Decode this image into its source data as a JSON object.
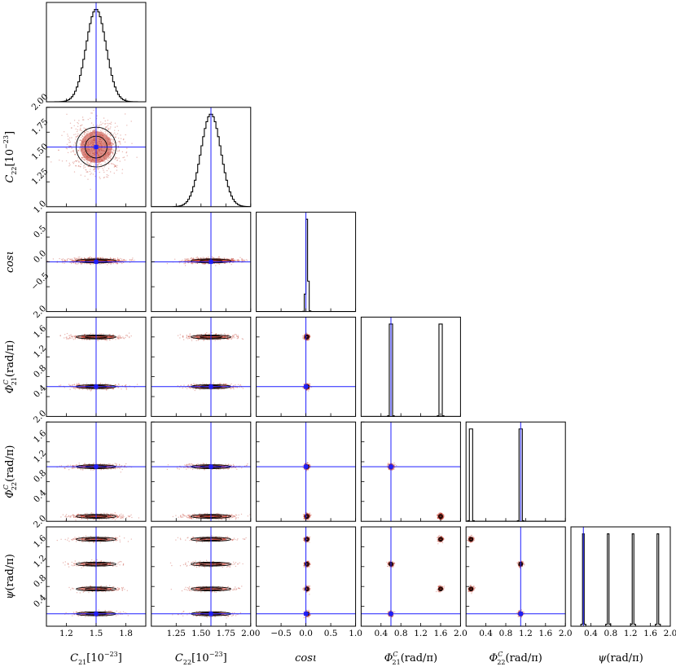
{
  "chart_data": {
    "type": "corner",
    "colors": {
      "truth": "#1f1fff",
      "hist": "#000000",
      "samples": "#c0392b",
      "contour": "#000000"
    },
    "params": [
      {
        "name": "C21",
        "xlabel_main": "C",
        "xlabel_sub": "21",
        "xlabel_unit": "[10",
        "xlabel_exp": "−23",
        "xlabel_end": "]",
        "range": [
          1.0,
          2.0
        ],
        "x_ticks": [
          "1.2",
          "1.5",
          "1.8"
        ],
        "x_tick_values": [
          1.2,
          1.5,
          1.8
        ],
        "truth": [
          1.5
        ],
        "modes": [
          1.5
        ],
        "sigma": 0.1
      },
      {
        "name": "C22",
        "ylabel_main": "C",
        "ylabel_sub": "22",
        "ylabel_unit": "[10",
        "ylabel_exp": "−23",
        "ylabel_end": "]",
        "xlabel_main": "C",
        "xlabel_sub": "22",
        "xlabel_unit": "[10",
        "xlabel_exp": "−23",
        "xlabel_end": "]",
        "range": [
          1.0,
          2.0
        ],
        "x_ticks": [
          "1.25",
          "1.50",
          "1.75",
          "2.00"
        ],
        "x_tick_values": [
          1.25,
          1.5,
          1.75,
          2.0
        ],
        "y_ticks": [
          "1.25",
          "1.50",
          "1.75",
          "2.00"
        ],
        "y_tick_values": [
          1.25,
          1.5,
          1.75,
          2.0
        ],
        "truth": [
          1.6
        ],
        "modes": [
          1.6
        ],
        "sigma": 0.1
      },
      {
        "name": "cosi",
        "ylabel_main": "cosι",
        "xlabel_main": "cosι",
        "range": [
          -1.0,
          1.0
        ],
        "x_ticks": [
          "−0.5",
          "0.0",
          "0.5",
          "1.0"
        ],
        "x_tick_values": [
          -0.5,
          0.0,
          0.5,
          1.0
        ],
        "y_ticks": [
          "−0.5",
          "0.0",
          "0.5",
          "1.0"
        ],
        "y_tick_values": [
          -0.5,
          0.0,
          0.5,
          1.0
        ],
        "truth": [
          0.0
        ],
        "modes": [
          0.02
        ],
        "sigma": 0.02
      },
      {
        "name": "Phi21",
        "ylabel_main": "Φ",
        "ylabel_sub": "21",
        "ylabel_sup": "C",
        "ylabel_unit": "(rad/π)",
        "xlabel_main": "Φ",
        "xlabel_sub": "21",
        "xlabel_sup": "C",
        "xlabel_unit": "(rad/π)",
        "range": [
          0.0,
          2.0
        ],
        "x_ticks": [
          "0.4",
          "0.8",
          "1.2",
          "1.6",
          "2.0"
        ],
        "x_tick_values": [
          0.4,
          0.8,
          1.2,
          1.6,
          2.0
        ],
        "y_ticks": [
          "0.4",
          "0.8",
          "1.2",
          "1.6",
          "2.0"
        ],
        "y_tick_values": [
          0.4,
          0.8,
          1.2,
          1.6,
          2.0
        ],
        "truth": [
          0.6
        ],
        "modes": [
          0.6,
          1.6
        ],
        "sigma": 0.015
      },
      {
        "name": "Phi22",
        "ylabel_main": "Φ",
        "ylabel_sub": "22",
        "ylabel_sup": "C",
        "ylabel_unit": "(rad/π)",
        "xlabel_main": "Φ",
        "xlabel_sub": "22",
        "xlabel_sup": "C",
        "xlabel_unit": "(rad/π)",
        "range": [
          0.0,
          2.0
        ],
        "x_ticks": [
          "0.4",
          "0.8",
          "1.2",
          "1.6",
          "2.0"
        ],
        "x_tick_values": [
          0.4,
          0.8,
          1.2,
          1.6,
          2.0
        ],
        "y_ticks": [
          "0.4",
          "0.8",
          "1.2",
          "1.6",
          "2.0"
        ],
        "y_tick_values": [
          0.4,
          0.8,
          1.2,
          1.6,
          2.0
        ],
        "truth": [
          1.1
        ],
        "modes": [
          0.1,
          1.1
        ],
        "sigma": 0.015
      },
      {
        "name": "psi",
        "ylabel_main": "ψ",
        "ylabel_unit": "(rad/π)",
        "xlabel_main": "ψ",
        "xlabel_unit": "(rad/π)",
        "range": [
          0.0,
          2.0
        ],
        "x_ticks": [
          "0.4",
          "0.8",
          "1.2",
          "1.6",
          "2.0"
        ],
        "x_tick_values": [
          0.4,
          0.8,
          1.2,
          1.6,
          2.0
        ],
        "y_ticks": [
          "0.4",
          "0.8",
          "1.2",
          "1.6",
          "2.0"
        ],
        "y_tick_values": [
          0.4,
          0.8,
          1.2,
          1.6,
          2.0
        ],
        "truth": [
          0.25
        ],
        "modes": [
          0.25,
          0.75,
          1.25,
          1.75
        ],
        "sigma": 0.012
      }
    ],
    "pair_modes": {
      "3-4": [
        [
          0.6,
          1.1
        ],
        [
          1.6,
          0.1
        ]
      ],
      "3-5": [
        [
          0.6,
          0.25
        ],
        [
          0.6,
          1.25
        ],
        [
          1.6,
          0.75
        ],
        [
          1.6,
          1.75
        ]
      ],
      "4-5": [
        [
          0.1,
          0.75
        ],
        [
          0.1,
          1.75
        ],
        [
          1.1,
          0.25
        ],
        [
          1.1,
          1.25
        ]
      ]
    }
  }
}
